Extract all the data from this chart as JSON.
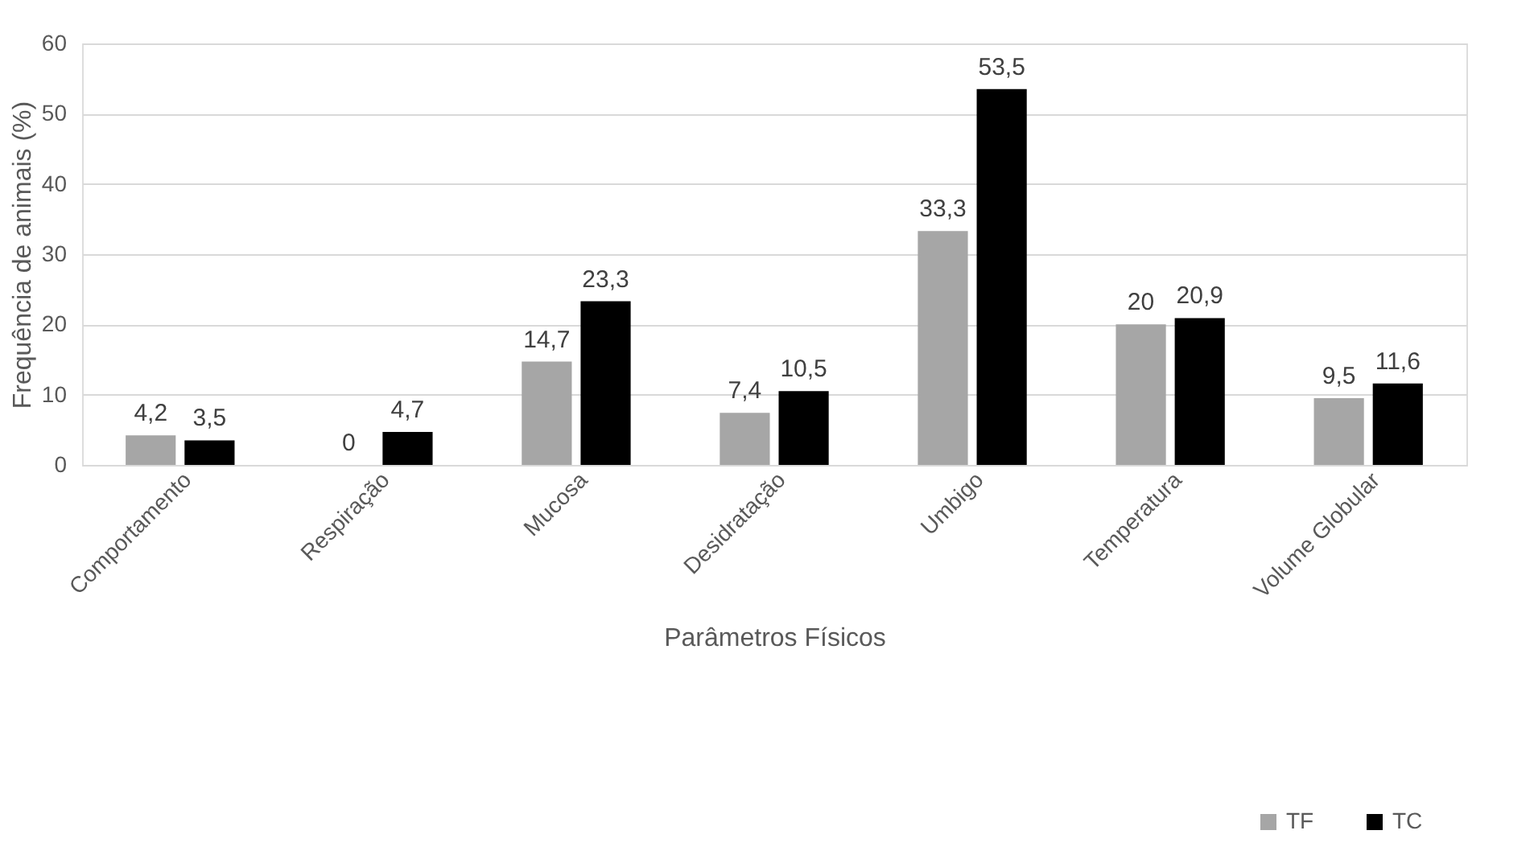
{
  "chart_data": {
    "type": "bar",
    "xlabel": "Parâmetros Físicos",
    "ylabel": "Frequência de animais (%)",
    "categories": [
      "Comportamento",
      "Respiração",
      "Mucosa",
      "Desidratação",
      "Umbigo",
      "Temperatura",
      "Volume Globular"
    ],
    "series": [
      {
        "name": "TF",
        "color": "#a6a6a6",
        "values": [
          4.2,
          0,
          14.7,
          7.4,
          33.3,
          20,
          9.5
        ],
        "value_labels": [
          "4,2",
          "0",
          "14,7",
          "7,4",
          "33,3",
          "20",
          "9,5"
        ]
      },
      {
        "name": "TC",
        "color": "#000000",
        "values": [
          3.5,
          4.7,
          23.3,
          10.5,
          53.5,
          20.9,
          11.6
        ],
        "value_labels": [
          "3,5",
          "4,7",
          "23,3",
          "10,5",
          "53,5",
          "20,9",
          "11,6"
        ]
      }
    ],
    "ylim": [
      0,
      60
    ],
    "yticks": [
      0,
      10,
      20,
      30,
      40,
      50,
      60
    ],
    "grid": "y",
    "legend": "bottom right"
  }
}
